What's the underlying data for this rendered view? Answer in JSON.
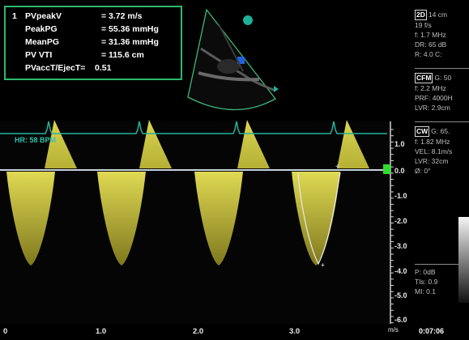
{
  "measurements": {
    "index": "1",
    "rows": [
      {
        "label": "PVpeakV",
        "value": "= 3.72 m/s"
      },
      {
        "label": "PeakPG",
        "value": "= 55.36 mmHg"
      },
      {
        "label": "MeanPG",
        "value": "= 31.36 mmHg"
      },
      {
        "label": "PV VTI",
        "value": "= 115.6 cm"
      },
      {
        "label": "PVaccT/EjecT=",
        "value": "0.51"
      }
    ]
  },
  "right_panel": {
    "mode_2d": {
      "tag": "2D",
      "lines": [
        "14 cm",
        "19 f/s",
        "f: 1.7 MHz",
        "DR: 65 dB",
        "R: 4.0  C:"
      ]
    },
    "mode_cfm": {
      "tag": "CFM",
      "lines": [
        "G: 50",
        "f: 2.2 MHz",
        "PRF: 4000H",
        "LVR: 2.9cm"
      ]
    },
    "mode_cw": {
      "tag": "CW",
      "lines": [
        "G: 65.",
        "f: 1.82 MHz",
        "VEL: 8.1m/s",
        "LVR: 32cm",
        "Ø: 0°"
      ]
    },
    "power": {
      "lines": [
        "P: 0dB",
        "TIs: 0.9",
        "MI: 0.1"
      ]
    }
  },
  "heart_rate": "HR: 58 BPM",
  "velocity_scale": [
    "1.0",
    "0.0",
    "-1.0",
    "-2.0",
    "-3.0",
    "-4.0",
    "-5.0",
    "-6.0"
  ],
  "time_scale": [
    "0",
    "1.0",
    "2.0",
    "3.0"
  ],
  "units": "m/s",
  "clock": "0:07:06",
  "colors": {
    "measure_box": "#2db86b",
    "doppler": "#e8e24a",
    "ecg": "#23b39c",
    "baseline": "#c8d2dc",
    "sector": "#3cb87a"
  }
}
